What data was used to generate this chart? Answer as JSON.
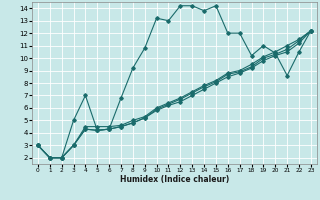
{
  "xlabel": "Humidex (Indice chaleur)",
  "xlim": [
    -0.5,
    23.5
  ],
  "ylim": [
    1.5,
    14.5
  ],
  "xticks": [
    0,
    1,
    2,
    3,
    4,
    5,
    6,
    7,
    8,
    9,
    10,
    11,
    12,
    13,
    14,
    15,
    16,
    17,
    18,
    19,
    20,
    21,
    22,
    23
  ],
  "yticks": [
    2,
    3,
    4,
    5,
    6,
    7,
    8,
    9,
    10,
    11,
    12,
    13,
    14
  ],
  "bg_color": "#c8e8e8",
  "line_color": "#1a6b6b",
  "grid_color": "#ffffff",
  "lines": [
    {
      "x": [
        0,
        1,
        2,
        3,
        4,
        5,
        6,
        7,
        8,
        9,
        10,
        11,
        12,
        13,
        14,
        15,
        16,
        17,
        18,
        19,
        20,
        21,
        22,
        23
      ],
      "y": [
        3,
        2,
        2,
        5,
        7,
        4.2,
        4.3,
        6.8,
        9.2,
        10.8,
        13.2,
        13,
        14.2,
        14.2,
        13.8,
        14.2,
        12,
        12,
        10.2,
        11,
        10.4,
        8.6,
        10.5,
        12.2
      ]
    },
    {
      "x": [
        0,
        1,
        2,
        3,
        4,
        5,
        6,
        7,
        8,
        9,
        10,
        11,
        12,
        13,
        14,
        15,
        16,
        17,
        18,
        19,
        20,
        21,
        22,
        23
      ],
      "y": [
        3,
        2,
        2,
        3,
        4.3,
        4.2,
        4.3,
        4.5,
        4.8,
        5.2,
        5.8,
        6.2,
        6.5,
        7.0,
        7.5,
        8.0,
        8.5,
        8.8,
        9.2,
        9.8,
        10.2,
        10.5,
        11.2,
        12.2
      ]
    },
    {
      "x": [
        0,
        1,
        2,
        3,
        4,
        5,
        6,
        7,
        8,
        9,
        10,
        11,
        12,
        13,
        14,
        15,
        16,
        17,
        18,
        19,
        20,
        21,
        22,
        23
      ],
      "y": [
        3,
        2,
        2,
        3,
        4.3,
        4.2,
        4.3,
        4.5,
        4.8,
        5.2,
        5.9,
        6.3,
        6.7,
        7.2,
        7.7,
        8.1,
        8.7,
        8.9,
        9.3,
        10.0,
        10.3,
        10.7,
        11.4,
        12.2
      ]
    },
    {
      "x": [
        0,
        1,
        2,
        3,
        4,
        5,
        6,
        7,
        8,
        9,
        10,
        11,
        12,
        13,
        14,
        15,
        16,
        17,
        18,
        19,
        20,
        21,
        22,
        23
      ],
      "y": [
        3,
        2,
        2,
        3,
        4.5,
        4.5,
        4.5,
        4.6,
        5.0,
        5.3,
        6.0,
        6.4,
        6.8,
        7.3,
        7.8,
        8.2,
        8.8,
        9.0,
        9.5,
        10.1,
        10.5,
        11.0,
        11.5,
        12.2
      ]
    }
  ]
}
